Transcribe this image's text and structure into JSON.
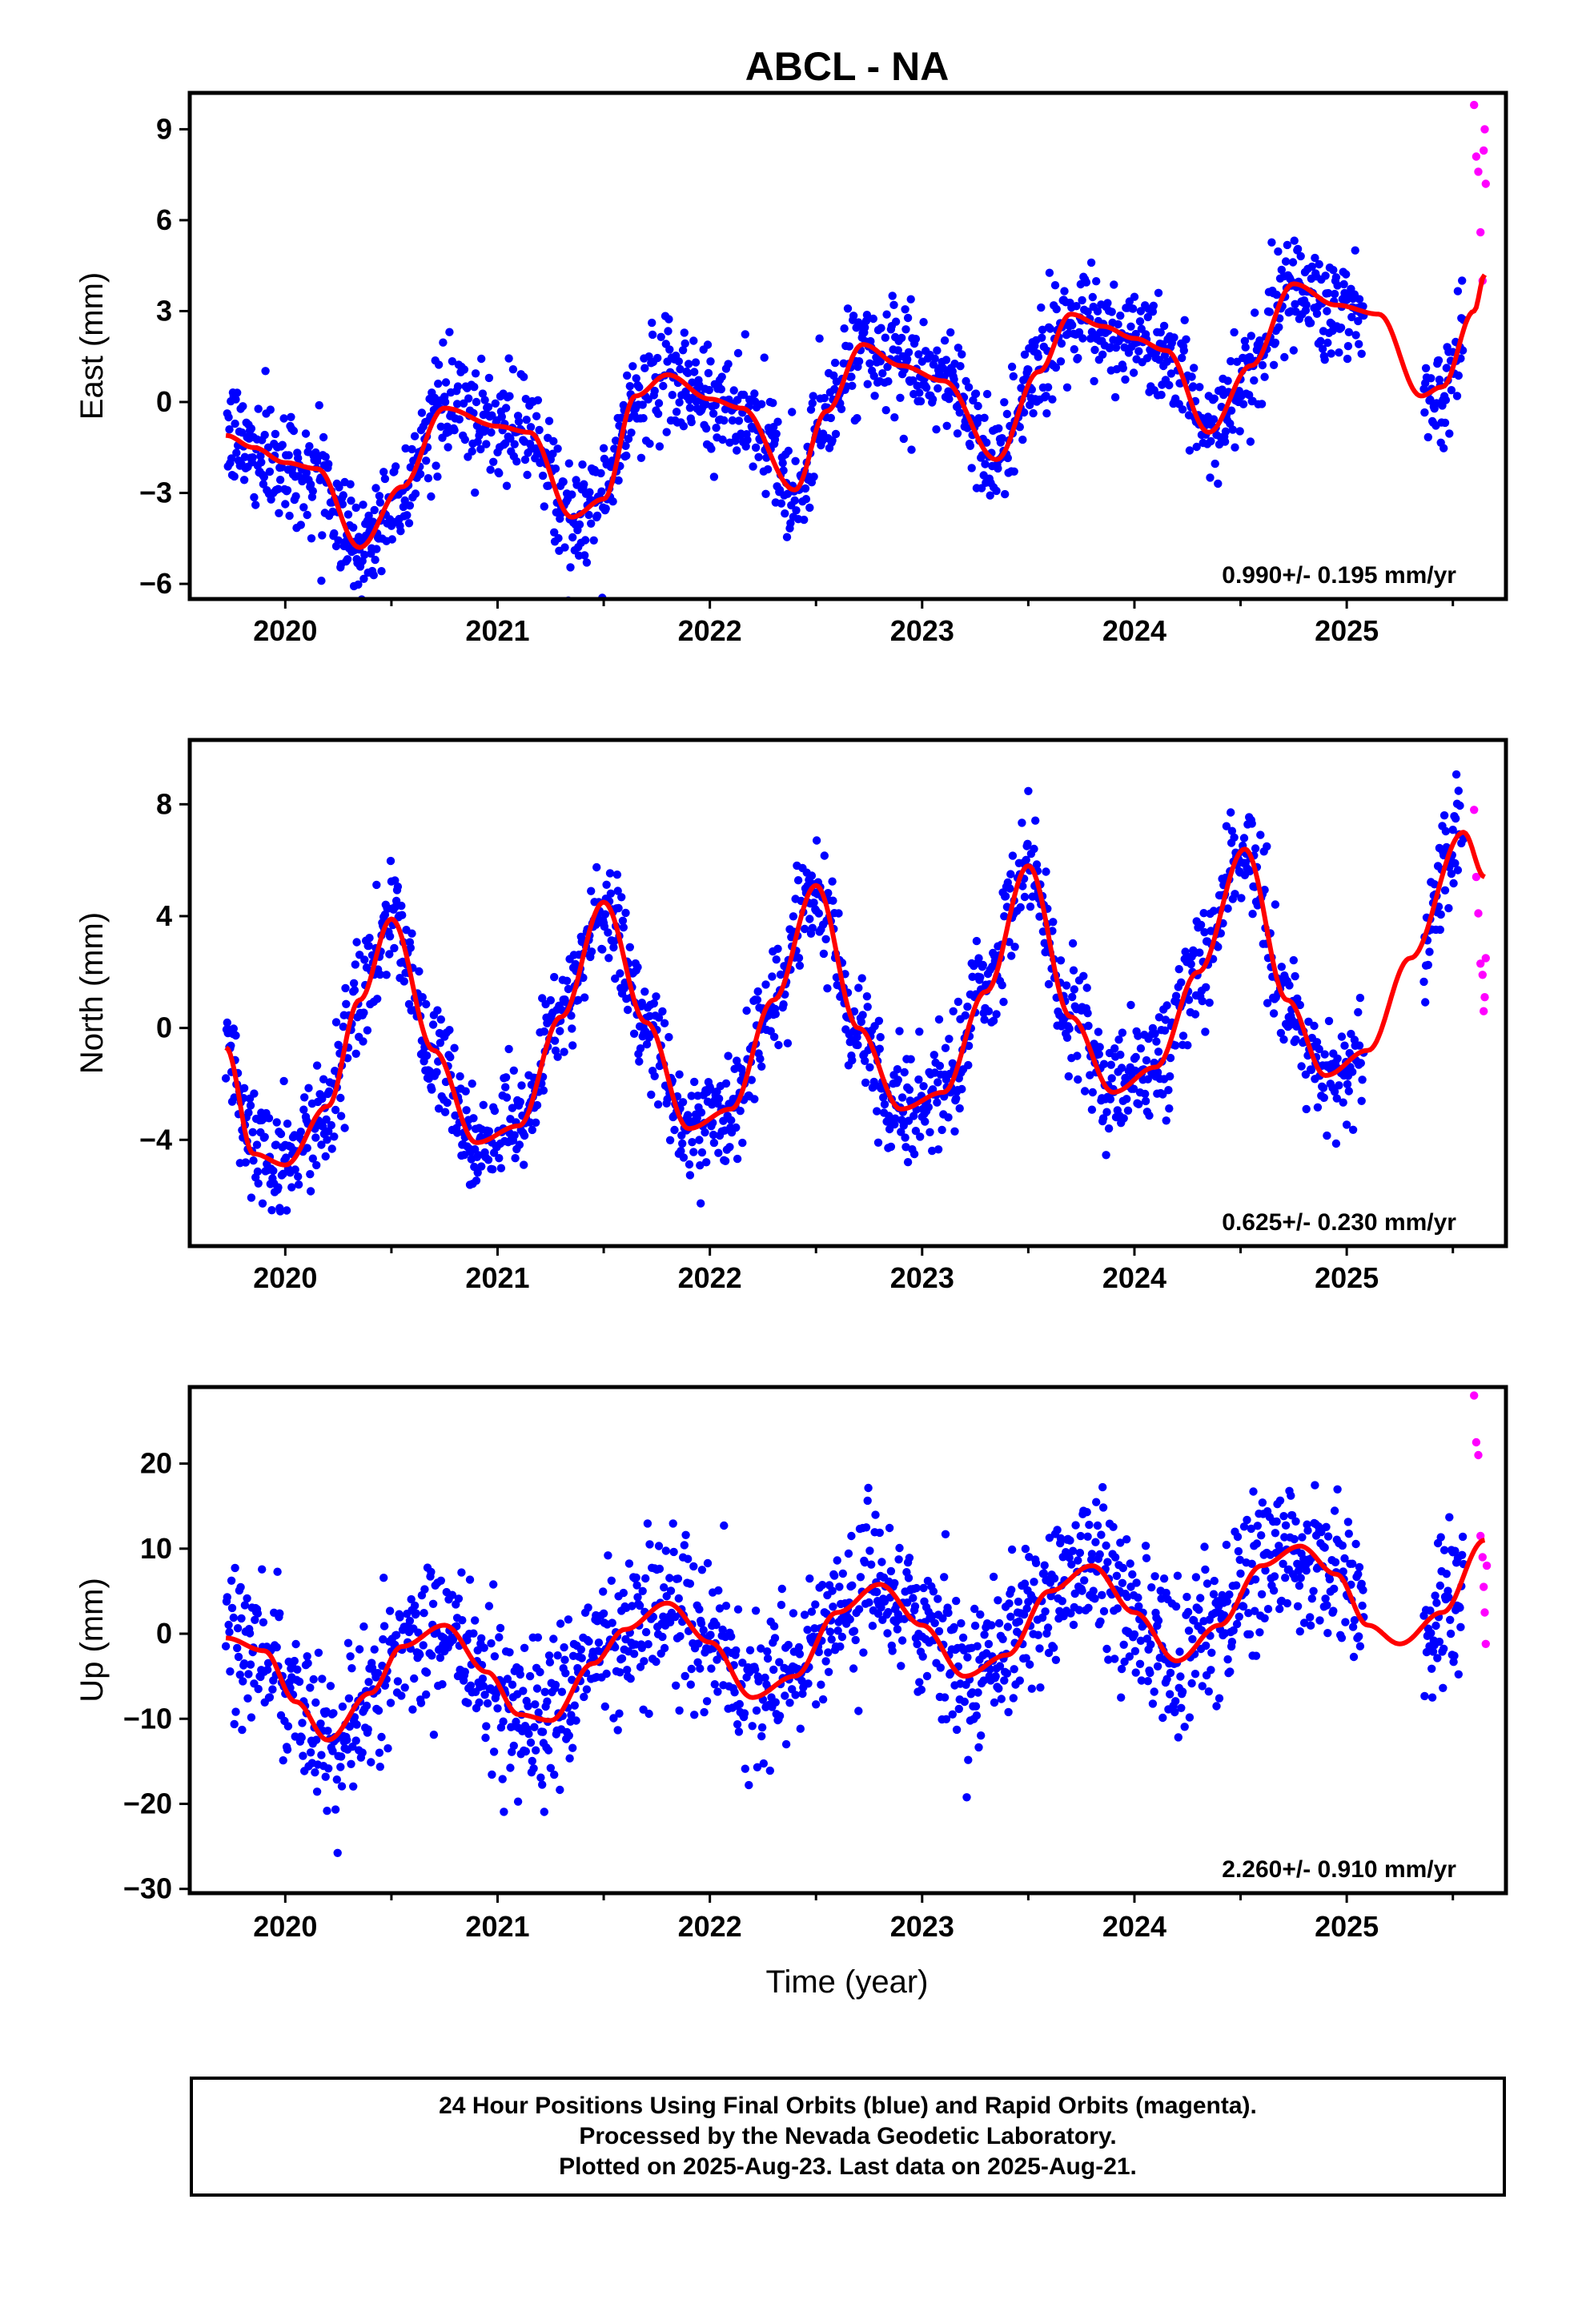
{
  "title": "ABCL - NA",
  "xlabel": "Time (year)",
  "footer": {
    "line1": "24 Hour Positions Using Final Orbits (blue) and Rapid Orbits (magenta).",
    "line2": "Processed by the Nevada Geodetic Laboratory.",
    "line3": "Plotted on 2025-Aug-23. Last data on 2025-Aug-21."
  },
  "colors": {
    "final": "#0000ff",
    "rapid": "#ff00ff",
    "model": "#ff0000",
    "axis": "#000000"
  },
  "chart_data": [
    {
      "type": "scatter",
      "component": "east",
      "ylabel": "East (mm)",
      "rate_text": "0.990+/- 0.195 mm/yr",
      "xlim": [
        2019.55,
        2025.75
      ],
      "ylim": [
        -6.5,
        10.2
      ],
      "xticks": [
        2020,
        2021,
        2022,
        2023,
        2024,
        2025
      ],
      "yticks": [
        -6,
        -3,
        0,
        3,
        6,
        9
      ],
      "ytick_labels": [
        "−6",
        "−3",
        "0",
        "3",
        "6",
        "9"
      ],
      "model_x": [
        2019.72,
        2019.85,
        2020.0,
        2020.15,
        2020.35,
        2020.55,
        2020.75,
        2021.0,
        2021.15,
        2021.35,
        2021.5,
        2021.65,
        2021.8,
        2022.0,
        2022.15,
        2022.4,
        2022.55,
        2022.72,
        2022.9,
        2023.1,
        2023.35,
        2023.55,
        2023.7,
        2023.85,
        2024.0,
        2024.15,
        2024.35,
        2024.55,
        2024.75,
        2024.95,
        2025.15,
        2025.35,
        2025.45,
        2025.6,
        2025.65
      ],
      "model_y": [
        -1.1,
        -1.5,
        -2.0,
        -2.2,
        -4.8,
        -2.8,
        -0.2,
        -0.8,
        -1.0,
        -3.8,
        -3.2,
        0.2,
        0.9,
        0.1,
        -0.2,
        -2.9,
        -0.3,
        1.9,
        1.2,
        0.7,
        -1.9,
        1.0,
        2.9,
        2.5,
        2.1,
        1.7,
        -1.0,
        1.2,
        3.9,
        3.2,
        2.9,
        0.2,
        0.5,
        3.0,
        4.2
      ],
      "final_noise_sd": 0.9,
      "final_range": [
        2019.72,
        2025.55
      ],
      "final_gaps": [
        [
          2025.08,
          2025.36
        ]
      ],
      "rapid_x": [
        2025.6,
        2025.61,
        2025.62,
        2025.63,
        2025.64,
        2025.645,
        2025.65,
        2025.655
      ],
      "rapid_y": [
        9.8,
        8.1,
        7.6,
        5.6,
        4.0,
        8.3,
        9.0,
        7.2
      ]
    },
    {
      "type": "scatter",
      "component": "north",
      "ylabel": "North (mm)",
      "rate_text": "0.625+/- 0.230 mm/yr",
      "xlim": [
        2019.55,
        2025.75
      ],
      "ylim": [
        -7.8,
        10.3
      ],
      "xticks": [
        2020,
        2021,
        2022,
        2023,
        2024,
        2025
      ],
      "yticks": [
        -4,
        0,
        4,
        8
      ],
      "ytick_labels": [
        "−4",
        "0",
        "4",
        "8"
      ],
      "model_x": [
        2019.72,
        2019.85,
        2020.0,
        2020.2,
        2020.35,
        2020.5,
        2020.7,
        2020.9,
        2021.1,
        2021.3,
        2021.5,
        2021.7,
        2021.9,
        2022.1,
        2022.3,
        2022.5,
        2022.7,
        2022.9,
        2023.1,
        2023.3,
        2023.5,
        2023.7,
        2023.9,
        2024.1,
        2024.3,
        2024.52,
        2024.72,
        2024.9,
        2025.1,
        2025.3,
        2025.55,
        2025.65
      ],
      "model_y": [
        -0.7,
        -4.5,
        -4.9,
        -2.8,
        1.0,
        3.9,
        -0.8,
        -4.1,
        -3.5,
        0.4,
        4.5,
        0.2,
        -3.6,
        -2.9,
        1.0,
        5.1,
        0.0,
        -2.9,
        -2.3,
        1.3,
        5.8,
        0.4,
        -2.3,
        -1.4,
        2.0,
        6.4,
        1.0,
        -1.7,
        -0.8,
        2.5,
        7.0,
        5.4
      ],
      "final_noise_sd": 1.0,
      "final_range": [
        2019.72,
        2025.55
      ],
      "final_gaps": [
        [
          2025.08,
          2025.36
        ]
      ],
      "rapid_x": [
        2025.6,
        2025.61,
        2025.62,
        2025.63,
        2025.64,
        2025.645,
        2025.65,
        2025.655
      ],
      "rapid_y": [
        7.8,
        5.4,
        4.1,
        2.3,
        1.9,
        0.6,
        1.1,
        2.5
      ]
    },
    {
      "type": "scatter",
      "component": "up",
      "ylabel": "Up (mm)",
      "rate_text": "2.260+/- 0.910 mm/yr",
      "xlim": [
        2019.55,
        2025.75
      ],
      "ylim": [
        -30.5,
        29
      ],
      "xticks": [
        2020,
        2021,
        2022,
        2023,
        2024,
        2025
      ],
      "yticks": [
        -30,
        -20,
        -10,
        0,
        10,
        20
      ],
      "ytick_labels": [
        "−30",
        "−20",
        "−10",
        "0",
        "10",
        "20"
      ],
      "model_x": [
        2019.72,
        2019.9,
        2020.05,
        2020.2,
        2020.4,
        2020.55,
        2020.75,
        2020.95,
        2021.1,
        2021.25,
        2021.45,
        2021.6,
        2021.8,
        2022.0,
        2022.2,
        2022.4,
        2022.6,
        2022.8,
        2023.0,
        2023.2,
        2023.4,
        2023.6,
        2023.8,
        2024.0,
        2024.2,
        2024.4,
        2024.6,
        2024.78,
        2024.95,
        2025.1,
        2025.25,
        2025.45,
        2025.65
      ],
      "model_y": [
        -0.5,
        -2.0,
        -8.0,
        -12.5,
        -7.0,
        -1.5,
        1.0,
        -4.5,
        -9.5,
        -10.2,
        -3.5,
        0.5,
        3.6,
        -1.0,
        -7.5,
        -5.0,
        2.5,
        5.8,
        1.0,
        -5.0,
        -2.5,
        5.0,
        8.0,
        2.5,
        -3.2,
        1.0,
        8.0,
        10.3,
        7.0,
        1.0,
        -1.2,
        2.5,
        11.0
      ],
      "final_noise_sd": 4.5,
      "final_range": [
        2019.72,
        2025.55
      ],
      "final_gaps": [
        [
          2025.08,
          2025.36
        ]
      ],
      "rapid_x": [
        2025.6,
        2025.61,
        2025.62,
        2025.63,
        2025.64,
        2025.645,
        2025.65,
        2025.655,
        2025.66
      ],
      "rapid_y": [
        28.0,
        22.5,
        21.0,
        11.5,
        9.0,
        5.5,
        2.5,
        -1.2,
        8.0
      ]
    }
  ]
}
